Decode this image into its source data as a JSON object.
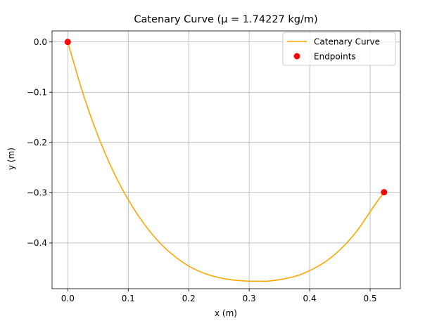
{
  "chart_data": {
    "type": "line",
    "title": "Catenary Curve (μ = 1.74227 kg/m)",
    "xlabel": "x (m)",
    "ylabel": "y (m)",
    "xlim": [
      -0.026,
      0.55
    ],
    "ylim": [
      -0.491,
      0.022
    ],
    "xticks": [
      0.0,
      0.1,
      0.2,
      0.3,
      0.4,
      0.5
    ],
    "xtick_labels": [
      "0.0",
      "0.1",
      "0.2",
      "0.3",
      "0.4",
      "0.5"
    ],
    "yticks": [
      0.0,
      -0.1,
      -0.2,
      -0.3,
      -0.4
    ],
    "ytick_labels": [
      "0.0",
      "−0.1",
      "−0.2",
      "−0.3",
      "−0.4"
    ],
    "grid": true,
    "legend_position": "top-right",
    "series": [
      {
        "name": "Catenary Curve",
        "kind": "line",
        "color": "#ffa500",
        "x": [
          0.0,
          0.025,
          0.05,
          0.075,
          0.1,
          0.125,
          0.15,
          0.175,
          0.2,
          0.225,
          0.25,
          0.275,
          0.3,
          0.315,
          0.33,
          0.355,
          0.38,
          0.405,
          0.43,
          0.455,
          0.48,
          0.505,
          0.523
        ],
        "y": [
          0.0,
          -0.102,
          -0.187,
          -0.257,
          -0.314,
          -0.36,
          -0.397,
          -0.425,
          -0.446,
          -0.46,
          -0.469,
          -0.474,
          -0.476,
          -0.476,
          -0.476,
          -0.472,
          -0.465,
          -0.452,
          -0.434,
          -0.408,
          -0.373,
          -0.329,
          -0.299
        ]
      },
      {
        "name": "Endpoints",
        "kind": "scatter",
        "color": "#ff0000",
        "x": [
          0.0,
          0.523
        ],
        "y": [
          0.0,
          -0.299
        ]
      }
    ]
  }
}
